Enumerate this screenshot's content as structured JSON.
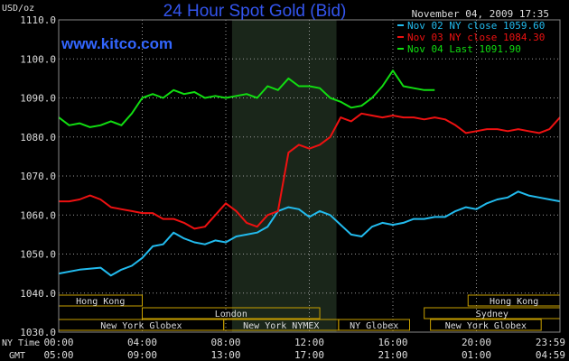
{
  "chart_data": {
    "type": "line",
    "title": "24 Hour Spot Gold (Bid)",
    "watermark": "www.kitco.com",
    "date_label": "November 04, 2009 17:35",
    "ylabel": "USD/oz",
    "ylim": [
      1030,
      1110
    ],
    "yticks": [
      "1030.0",
      "1040.0",
      "1050.0",
      "1060.0",
      "1070.0",
      "1080.0",
      "1090.0",
      "1100.0",
      "1110.0"
    ],
    "ny_time_label": "NY Time",
    "gmt_label": "GMT",
    "ny_time_ticks": [
      "00:00",
      "04:00",
      "08:00",
      "12:00",
      "16:00",
      "20:00",
      "23:59"
    ],
    "gmt_ticks": [
      "05:00",
      "09:00",
      "13:00",
      "17:00",
      "21:00",
      "01:00",
      "04:59"
    ],
    "xlim_hours": [
      0,
      24
    ],
    "highlight_hours": [
      8.3,
      13.3
    ],
    "legend": [
      {
        "text": "Nov 02 NY close 1059.60",
        "color": "#22bbee"
      },
      {
        "text": "Nov 03 NY close 1084.30",
        "color": "#ee1111"
      },
      {
        "text": "Nov 04 Last 1091.90",
        "color": "#11dd11"
      }
    ],
    "series": [
      {
        "color": "#22bbee",
        "x": [
          0,
          1,
          2,
          2.5,
          3,
          3.5,
          4,
          4.5,
          5,
          5.5,
          6,
          6.5,
          7,
          7.5,
          8,
          8.5,
          9,
          9.5,
          10,
          10.5,
          11,
          11.5,
          12,
          12.5,
          13,
          13.5,
          14,
          14.5,
          15,
          15.5,
          16,
          16.5,
          17,
          17.5,
          18,
          18.5,
          19,
          19.5,
          20,
          20.5,
          21,
          21.5,
          22,
          22.5,
          23,
          23.5,
          24
        ],
        "values": [
          1045,
          1046,
          1046.5,
          1044.5,
          1046,
          1047,
          1049,
          1052,
          1052.5,
          1055.5,
          1054,
          1053,
          1052.5,
          1053.5,
          1053,
          1054.5,
          1055,
          1055.5,
          1057,
          1061,
          1062,
          1061.5,
          1059.5,
          1061,
          1060,
          1057.5,
          1055,
          1054.5,
          1057,
          1058,
          1057.5,
          1058,
          1059,
          1059,
          1059.5,
          1059.5,
          1061,
          1062,
          1061.5,
          1063,
          1064,
          1064.5,
          1066,
          1065,
          1064.5,
          1064,
          1063.5
        ]
      },
      {
        "color": "#ee1111",
        "x": [
          0,
          0.5,
          1,
          1.5,
          2,
          2.5,
          3,
          3.5,
          4,
          4.5,
          5,
          5.5,
          6,
          6.5,
          7,
          7.5,
          8,
          8.5,
          9,
          9.5,
          10,
          10.5,
          11,
          11.5,
          12,
          12.5,
          13,
          13.5,
          14,
          14.5,
          15,
          15.5,
          16,
          16.5,
          17,
          17.5,
          18,
          18.5,
          19,
          19.5,
          20,
          20.5,
          21,
          21.5,
          22,
          22.5,
          23,
          23.5,
          24
        ],
        "values": [
          1063.5,
          1063.5,
          1064,
          1065,
          1064,
          1062,
          1061.5,
          1061,
          1060.5,
          1060.5,
          1059,
          1059,
          1058,
          1056.5,
          1057,
          1060,
          1063,
          1061,
          1058,
          1057,
          1060,
          1061,
          1076,
          1078,
          1077,
          1078,
          1080,
          1085,
          1084,
          1086,
          1085.5,
          1085,
          1085.5,
          1085,
          1085,
          1084.5,
          1085,
          1084.5,
          1083,
          1081,
          1081.5,
          1082,
          1082,
          1081.5,
          1082,
          1081.5,
          1081,
          1082,
          1085
        ]
      },
      {
        "color": "#11dd11",
        "x": [
          0,
          0.5,
          1,
          1.5,
          2,
          2.5,
          3,
          3.5,
          4,
          4.5,
          5,
          5.5,
          6,
          6.5,
          7,
          7.5,
          8,
          8.5,
          9,
          9.5,
          10,
          10.5,
          11,
          11.5,
          12,
          12.5,
          13,
          13.5,
          14,
          14.5,
          15,
          15.5,
          16,
          16.5,
          17,
          17.5,
          18
        ],
        "values": [
          1085,
          1083,
          1083.5,
          1082.5,
          1083,
          1084,
          1083,
          1086,
          1090,
          1091,
          1090,
          1092,
          1091,
          1091.5,
          1090,
          1090.5,
          1090,
          1090.5,
          1091,
          1090,
          1093,
          1092,
          1095,
          1093,
          1093,
          1092.5,
          1090,
          1089,
          1087.5,
          1088,
          1090,
          1093,
          1097,
          1093,
          1092.5,
          1092,
          1092
        ]
      }
    ],
    "sessions": [
      {
        "label": "Hong Kong",
        "start": 0,
        "end": 4.0,
        "row": 0
      },
      {
        "label": "Hong Kong",
        "start": 19.6,
        "end": 24,
        "row": 0
      },
      {
        "label": "London",
        "start": 4.0,
        "end": 12.5,
        "row": 1
      },
      {
        "label": "Sydney",
        "start": 17.5,
        "end": 24,
        "row": 1
      },
      {
        "label": "New York Globex",
        "start": 0,
        "end": 7.9,
        "row": 2
      },
      {
        "label": "New York NYMEX",
        "start": 7.9,
        "end": 13.4,
        "row": 2
      },
      {
        "label": "NY Globex",
        "start": 13.4,
        "end": 16.8,
        "row": 2
      },
      {
        "label": "New York Globex",
        "start": 17.8,
        "end": 23.1,
        "row": 2
      }
    ]
  }
}
